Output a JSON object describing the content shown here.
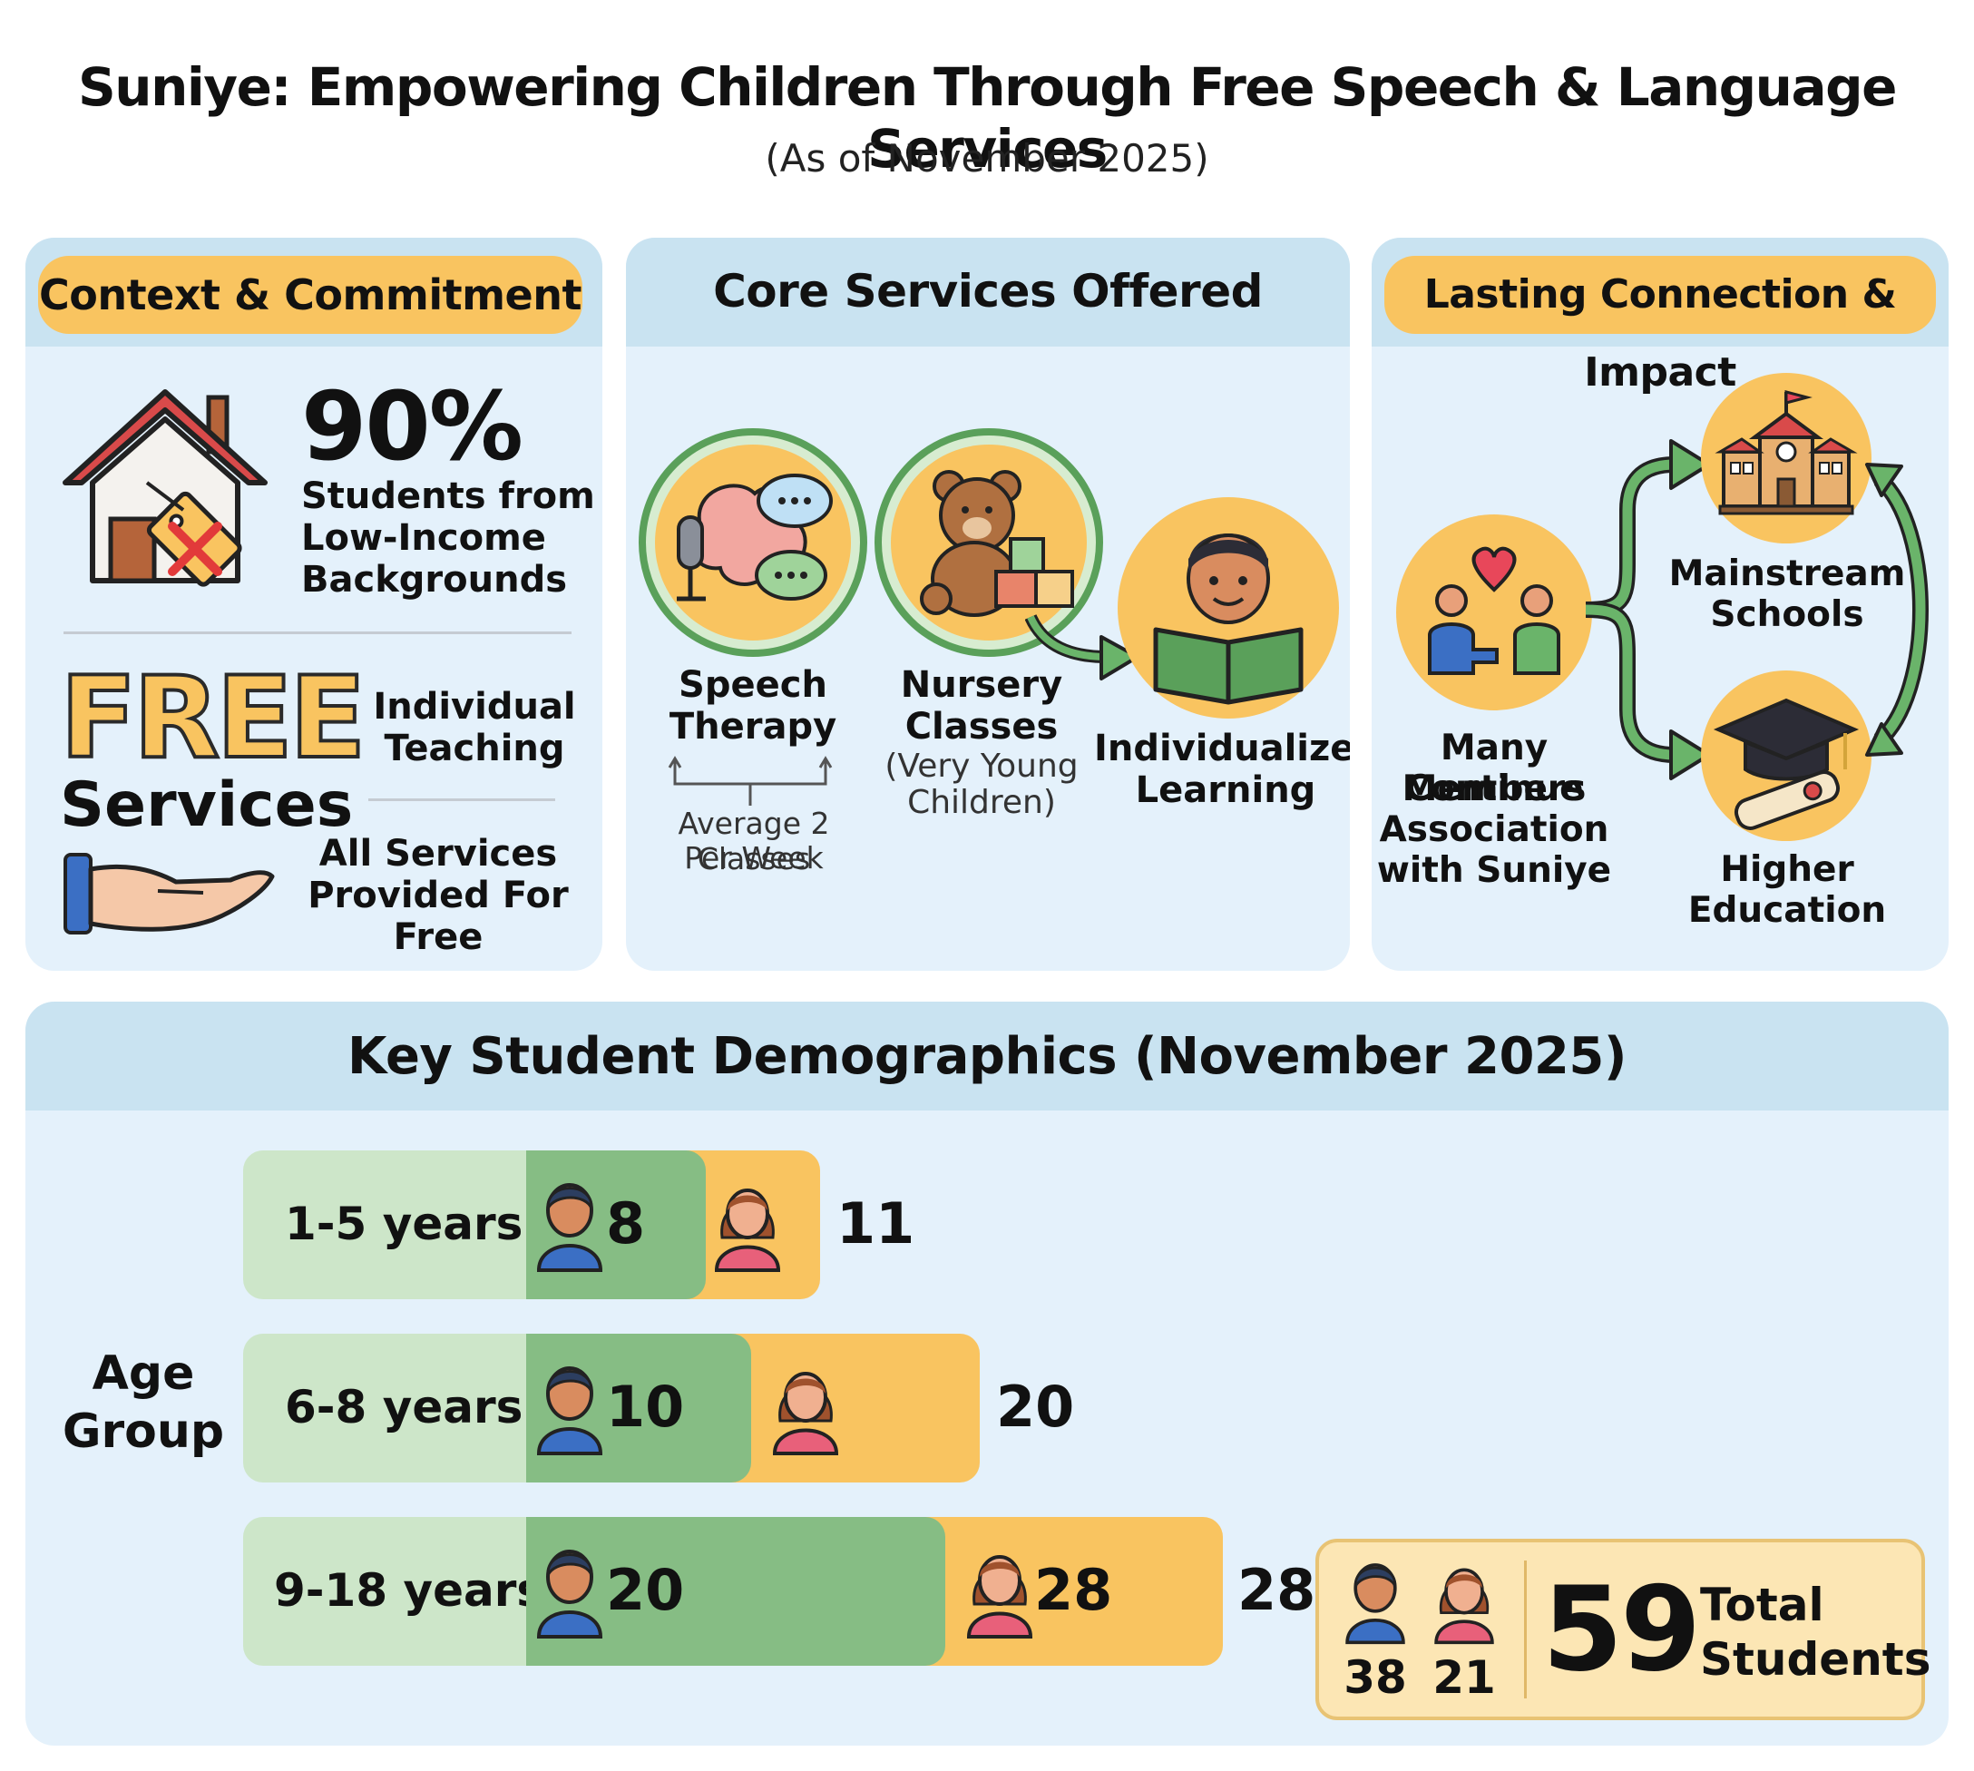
{
  "header": {
    "title": "Suniye: Empowering Children Through Free Speech & Language Services",
    "subtitle": "(As of November 2025)"
  },
  "context": {
    "heading": "Context & Commitment",
    "stat_value": "90%",
    "stat_lines": [
      "Students from",
      "Low-Income",
      "Backgrounds"
    ],
    "free_word": "FREE",
    "services_word": "Services",
    "individual_lines": [
      "Individual",
      "Teaching"
    ],
    "all_free_lines": [
      "All Services",
      "Provided For Free"
    ]
  },
  "core": {
    "heading": "Core Services Offered",
    "speech_lines": [
      "Speech",
      "Therapy"
    ],
    "frequency_lines": [
      "Average 2 Classes",
      "Per Week"
    ],
    "nursery_lines": [
      "Nursery",
      "Classes"
    ],
    "nursery_note_lines": [
      "(Very Young",
      "Children)"
    ],
    "individualized_lines": [
      "Individualized",
      "Learning"
    ]
  },
  "impact": {
    "heading": "Lasting Connection & Impact",
    "members_lines": [
      "Many Members",
      "Continue",
      "Association",
      "with Suniye"
    ],
    "mainstream_lines": [
      "Mainstream",
      "Schools"
    ],
    "higher_lines": [
      "Higher",
      "Education"
    ]
  },
  "demographics": {
    "heading": "Key Student Demographics (November 2025)",
    "axis_lines": [
      "Age",
      "Group"
    ],
    "rows": [
      {
        "label": "1-5 years",
        "male": "8",
        "female_inside": "",
        "female_outside": "11"
      },
      {
        "label": "6-8 years",
        "male": "10",
        "female_inside": "",
        "female_outside": "20"
      },
      {
        "label": "9-18 years",
        "male": "20",
        "female_inside": "28",
        "female_outside": "28"
      }
    ],
    "total": {
      "male": "38",
      "female": "21",
      "value": "59",
      "label_lines": [
        "Total",
        "Students"
      ]
    }
  },
  "colors": {
    "panel": "#e4f1fb",
    "panel_header": "#c9e3f1",
    "accent_orange": "#f9c460",
    "male_green": "#86bd84",
    "light_green": "#cde6c9",
    "free_text": "#f9c460",
    "house_roof": "#d94a4a"
  },
  "icons": [
    "house-price-tag-icon",
    "giving-hand-icon",
    "speech-brain-microphone-icon",
    "teddy-bear-blocks-icon",
    "child-reading-book-icon",
    "handshake-heart-icon",
    "school-building-icon",
    "graduation-cap-diploma-icon",
    "male-student-icon",
    "female-student-icon"
  ]
}
